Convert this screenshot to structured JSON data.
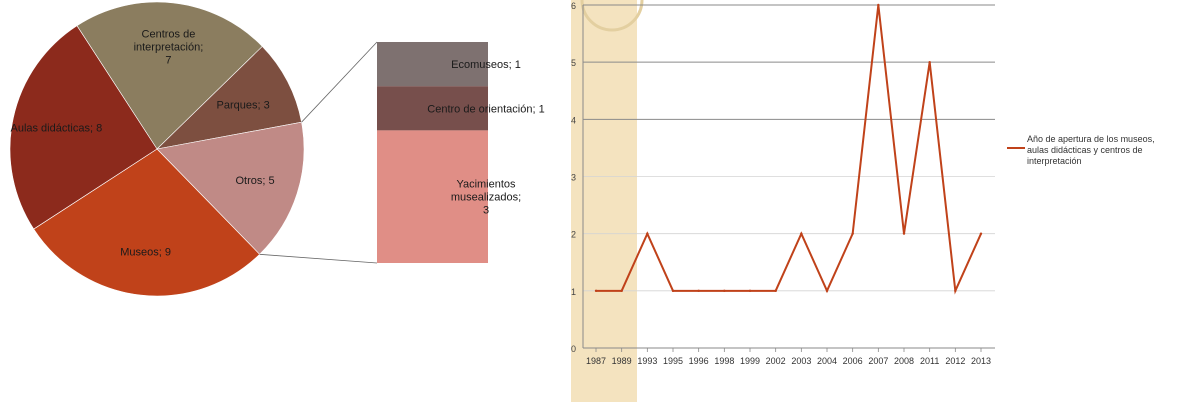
{
  "chart_data": [
    {
      "type": "pie",
      "slices": [
        {
          "label": "Centros de interpretación; 7",
          "value": 7,
          "color": "#8b7d5f"
        },
        {
          "label": "Parques; 3",
          "value": 3,
          "color": "#7d4f40"
        },
        {
          "label": "Otros; 5",
          "value": 5,
          "color": "#c08a86"
        },
        {
          "label": "Museos; 9",
          "value": 9,
          "color": "#c0421a"
        },
        {
          "label": "Aulas didácticas; 8",
          "value": 8,
          "color": "#8c2a1c"
        }
      ],
      "breakdown": {
        "parent": "Otros; 5",
        "type": "bar",
        "stacked": true,
        "segments": [
          {
            "label": "Ecomuseos; 1",
            "value": 1,
            "color": "#7e7170"
          },
          {
            "label": "Centro de orientación; 1",
            "value": 1,
            "color": "#774f4c"
          },
          {
            "label": "Yacimientos musealizados; 3",
            "value": 3,
            "color": "#e08e86"
          }
        ]
      }
    },
    {
      "type": "line",
      "x": [
        "1987",
        "1989",
        "1993",
        "1995",
        "1996",
        "1998",
        "1999",
        "2002",
        "2003",
        "2004",
        "2006",
        "2007",
        "2008",
        "2011",
        "2012",
        "2013"
      ],
      "series": [
        {
          "name": "Año de apertura de los museos, aulas didácticas y centros de interpretación",
          "values": [
            1,
            1,
            2,
            1,
            1,
            1,
            1,
            1,
            2,
            1,
            2,
            6,
            2,
            5,
            1,
            2
          ],
          "color": "#c0421a"
        }
      ],
      "ylim": [
        0,
        6
      ],
      "yticks": [
        "0",
        "1",
        "2",
        "3",
        "4",
        "5",
        "6"
      ],
      "grid": true,
      "legend": "right",
      "band_color": "#f2deb4"
    }
  ]
}
